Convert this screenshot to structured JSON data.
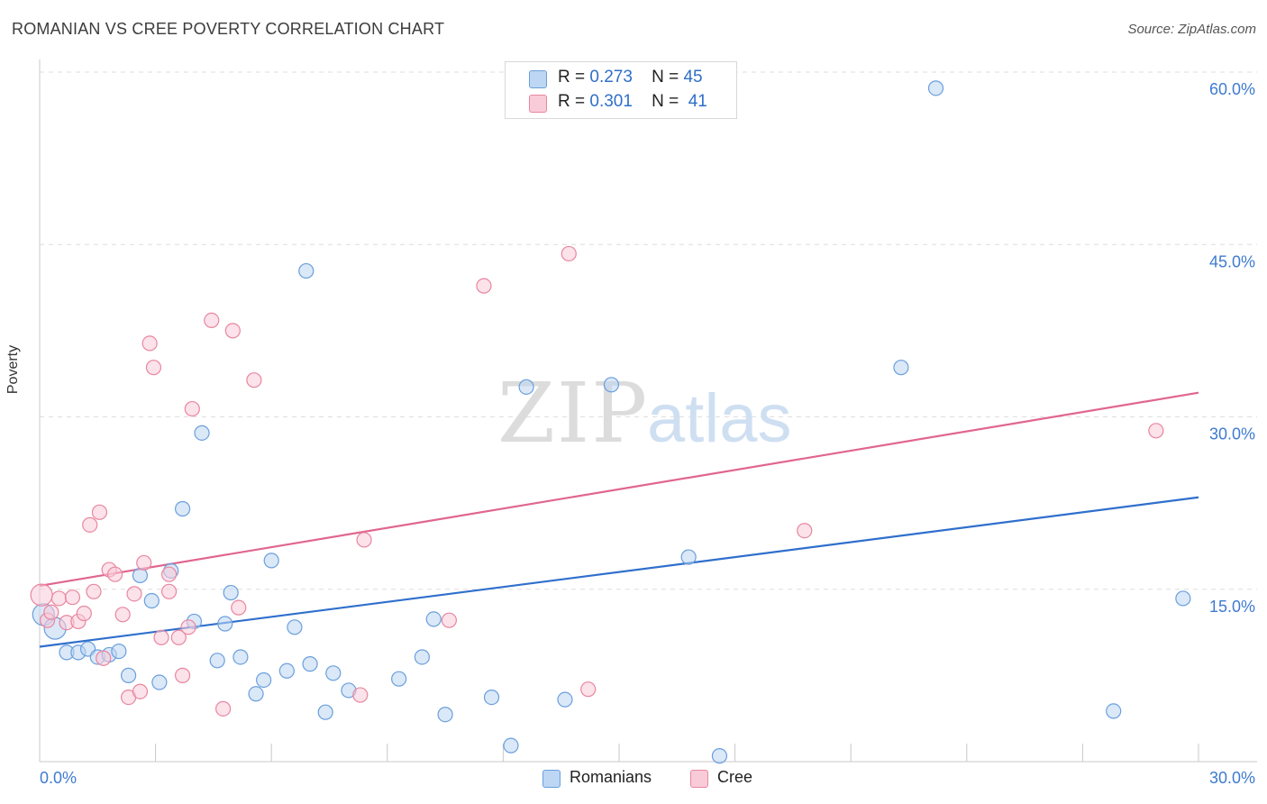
{
  "header": {
    "title": "ROMANIAN VS CREE POVERTY CORRELATION CHART",
    "source": "Source: ZipAtlas.com"
  },
  "watermark": {
    "zip": "ZIP",
    "atlas": "atlas"
  },
  "legend": {
    "series": [
      {
        "r_label": "R =",
        "r_value": "0.273",
        "n_label": "N =",
        "n_value": "45",
        "color": "#a9c9f0",
        "edge": "#6a9fdc"
      },
      {
        "r_label": "R =",
        "r_value": "0.301",
        "n_label": "N =",
        "n_value": "41",
        "color": "#f7bdd0",
        "edge": "#e8869f"
      }
    ]
  },
  "bottom_legend": {
    "items": [
      "Romanians",
      "Cree"
    ]
  },
  "chart_data": {
    "type": "scatter",
    "title": "ROMANIAN VS CREE POVERTY CORRELATION CHART",
    "xlabel": "",
    "ylabel": "Poverty",
    "xlim": [
      0,
      30
    ],
    "ylim": [
      0,
      60
    ],
    "x_tick_labels": [
      "0.0%",
      "30.0%"
    ],
    "y_tick_labels": [
      "15.0%",
      "30.0%",
      "45.0%",
      "60.0%"
    ],
    "y_ticks": [
      15,
      30,
      45,
      60
    ],
    "grid": true,
    "legend_position": "top-center",
    "series": [
      {
        "name": "Romanians",
        "color": "#6a9fdc",
        "fill": "#bcd6f3",
        "trend": {
          "x": [
            0,
            30
          ],
          "y": [
            10.0,
            23.0
          ],
          "color": "#2f6fcc"
        },
        "points": [
          {
            "x": 0.1,
            "y": 12.8,
            "big": true
          },
          {
            "x": 0.4,
            "y": 11.6,
            "big": true
          },
          {
            "x": 0.7,
            "y": 9.5
          },
          {
            "x": 1.0,
            "y": 9.5
          },
          {
            "x": 1.25,
            "y": 9.8
          },
          {
            "x": 1.5,
            "y": 9.1
          },
          {
            "x": 1.8,
            "y": 9.3
          },
          {
            "x": 2.05,
            "y": 9.6
          },
          {
            "x": 2.3,
            "y": 7.5
          },
          {
            "x": 2.6,
            "y": 16.2
          },
          {
            "x": 2.9,
            "y": 14.0
          },
          {
            "x": 3.1,
            "y": 6.9
          },
          {
            "x": 3.4,
            "y": 16.6
          },
          {
            "x": 3.7,
            "y": 22.0
          },
          {
            "x": 4.0,
            "y": 12.2
          },
          {
            "x": 4.2,
            "y": 28.6
          },
          {
            "x": 4.6,
            "y": 8.8
          },
          {
            "x": 4.8,
            "y": 12.0
          },
          {
            "x": 4.95,
            "y": 14.7
          },
          {
            "x": 5.2,
            "y": 9.1
          },
          {
            "x": 5.6,
            "y": 5.9
          },
          {
            "x": 5.8,
            "y": 7.1
          },
          {
            "x": 6.0,
            "y": 17.5
          },
          {
            "x": 6.4,
            "y": 7.9
          },
          {
            "x": 6.6,
            "y": 11.7
          },
          {
            "x": 6.9,
            "y": 42.7
          },
          {
            "x": 7.0,
            "y": 8.5
          },
          {
            "x": 7.4,
            "y": 4.3
          },
          {
            "x": 7.6,
            "y": 7.7
          },
          {
            "x": 8.0,
            "y": 6.2
          },
          {
            "x": 9.3,
            "y": 7.2
          },
          {
            "x": 9.9,
            "y": 9.1
          },
          {
            "x": 10.2,
            "y": 12.4
          },
          {
            "x": 10.5,
            "y": 4.1
          },
          {
            "x": 11.7,
            "y": 5.6
          },
          {
            "x": 12.2,
            "y": 1.4
          },
          {
            "x": 12.6,
            "y": 32.6
          },
          {
            "x": 13.6,
            "y": 5.4
          },
          {
            "x": 14.8,
            "y": 32.8
          },
          {
            "x": 16.8,
            "y": 17.8
          },
          {
            "x": 17.6,
            "y": 0.5
          },
          {
            "x": 22.3,
            "y": 34.3
          },
          {
            "x": 23.2,
            "y": 58.6
          },
          {
            "x": 27.8,
            "y": 4.4
          },
          {
            "x": 29.6,
            "y": 14.2
          }
        ]
      },
      {
        "name": "Cree",
        "color": "#e8869f",
        "fill": "#f9cbd9",
        "trend": {
          "x": [
            0,
            30
          ],
          "y": [
            15.3,
            32.1
          ],
          "color": "#e0668f"
        },
        "points": [
          {
            "x": 0.05,
            "y": 14.5,
            "big": true
          },
          {
            "x": 0.2,
            "y": 12.3
          },
          {
            "x": 0.5,
            "y": 14.2
          },
          {
            "x": 0.7,
            "y": 12.1
          },
          {
            "x": 0.85,
            "y": 14.3
          },
          {
            "x": 1.0,
            "y": 12.2
          },
          {
            "x": 1.15,
            "y": 12.9
          },
          {
            "x": 1.3,
            "y": 20.6
          },
          {
            "x": 1.4,
            "y": 14.8
          },
          {
            "x": 1.55,
            "y": 21.7
          },
          {
            "x": 1.65,
            "y": 9.0
          },
          {
            "x": 1.8,
            "y": 16.7
          },
          {
            "x": 1.95,
            "y": 16.3
          },
          {
            "x": 2.15,
            "y": 12.8
          },
          {
            "x": 2.3,
            "y": 5.6
          },
          {
            "x": 2.45,
            "y": 14.6
          },
          {
            "x": 2.6,
            "y": 6.1
          },
          {
            "x": 2.7,
            "y": 17.3
          },
          {
            "x": 2.85,
            "y": 36.4
          },
          {
            "x": 2.95,
            "y": 34.3
          },
          {
            "x": 3.15,
            "y": 10.8
          },
          {
            "x": 3.35,
            "y": 16.3
          },
          {
            "x": 3.35,
            "y": 14.8
          },
          {
            "x": 3.6,
            "y": 10.8
          },
          {
            "x": 3.7,
            "y": 7.5
          },
          {
            "x": 3.85,
            "y": 11.7
          },
          {
            "x": 3.95,
            "y": 30.7
          },
          {
            "x": 4.45,
            "y": 38.4
          },
          {
            "x": 4.75,
            "y": 4.6
          },
          {
            "x": 5.0,
            "y": 37.5
          },
          {
            "x": 5.15,
            "y": 13.4
          },
          {
            "x": 5.55,
            "y": 33.2
          },
          {
            "x": 8.3,
            "y": 5.8
          },
          {
            "x": 8.4,
            "y": 19.3
          },
          {
            "x": 10.6,
            "y": 12.3
          },
          {
            "x": 11.5,
            "y": 41.4
          },
          {
            "x": 13.7,
            "y": 44.2
          },
          {
            "x": 14.2,
            "y": 6.3
          },
          {
            "x": 19.8,
            "y": 20.1
          },
          {
            "x": 28.9,
            "y": 28.8
          },
          {
            "x": 0.3,
            "y": 13.0
          }
        ]
      }
    ]
  }
}
